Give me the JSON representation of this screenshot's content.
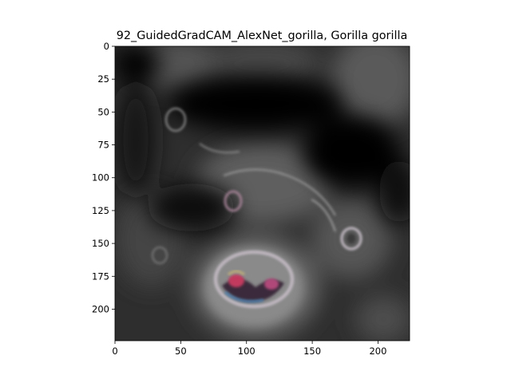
{
  "figure": {
    "title": "92_GuidedGradCAM_AlexNet_gorilla, Gorilla gorilla",
    "background_color": "#ffffff",
    "image": {
      "subject": "Guided Grad-CAM saliency map over a gorilla face",
      "extent_x": [
        0,
        224
      ],
      "extent_y": [
        224,
        0
      ],
      "dominant_colors": [
        "#000000",
        "#3a3a3a",
        "#6f6f6f",
        "#b0a8b0",
        "#c23a5e",
        "#4a7fb0"
      ]
    },
    "x_axis": {
      "ticks": [
        {
          "value": 0,
          "label": "0"
        },
        {
          "value": 50,
          "label": "50"
        },
        {
          "value": 100,
          "label": "100"
        },
        {
          "value": 150,
          "label": "150"
        },
        {
          "value": 200,
          "label": "200"
        }
      ]
    },
    "y_axis": {
      "ticks": [
        {
          "value": 0,
          "label": "0"
        },
        {
          "value": 25,
          "label": "25"
        },
        {
          "value": 50,
          "label": "50"
        },
        {
          "value": 75,
          "label": "75"
        },
        {
          "value": 100,
          "label": "100"
        },
        {
          "value": 125,
          "label": "125"
        },
        {
          "value": 150,
          "label": "150"
        },
        {
          "value": 175,
          "label": "175"
        },
        {
          "value": 200,
          "label": "200"
        }
      ]
    }
  }
}
